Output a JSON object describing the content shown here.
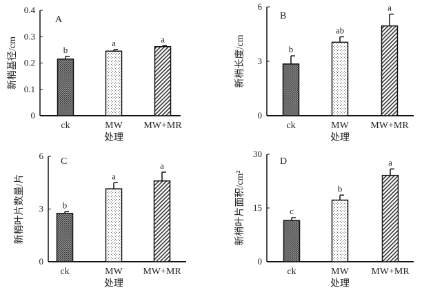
{
  "chart_data": [
    {
      "type": "bar",
      "panel": "A",
      "ylabel": "新梢基径/cm",
      "xlabel": "处理",
      "categories": [
        "ck",
        "MW",
        "MW+MR"
      ],
      "values": [
        0.215,
        0.245,
        0.262
      ],
      "errors": [
        0.01,
        0.006,
        0.004
      ],
      "letters": [
        "b",
        "a",
        "a"
      ],
      "ylim": [
        0,
        0.4
      ],
      "yticks": [
        "0",
        "0.1",
        "0.2",
        "0.3",
        "0.4"
      ],
      "ytick_values": [
        0,
        0.1,
        0.2,
        0.3,
        0.4
      ]
    },
    {
      "type": "bar",
      "panel": "B",
      "ylabel": "新梢长度/cm",
      "xlabel": "处理",
      "categories": [
        "ck",
        "MW",
        "MW+MR"
      ],
      "values": [
        2.85,
        4.05,
        4.95
      ],
      "errors": [
        0.45,
        0.3,
        0.65
      ],
      "letters": [
        "b",
        "ab",
        "a"
      ],
      "ylim": [
        0,
        6
      ],
      "yticks": [
        "0",
        "3",
        "6"
      ],
      "ytick_values": [
        0,
        3,
        6
      ]
    },
    {
      "type": "bar",
      "panel": "C",
      "ylabel": "新梢叶片数量/片",
      "xlabel": "处理",
      "categories": [
        "ck",
        "MW",
        "MW+MR"
      ],
      "values": [
        2.75,
        4.15,
        4.6
      ],
      "errors": [
        0.1,
        0.35,
        0.5
      ],
      "letters": [
        "b",
        "a",
        "a"
      ],
      "ylim": [
        0,
        6
      ],
      "yticks": [
        "0",
        "3",
        "6"
      ],
      "ytick_values": [
        0,
        3,
        6
      ]
    },
    {
      "type": "bar",
      "panel": "D",
      "ylabel": "新梢叶片面积/cm²",
      "xlabel": "处理",
      "categories": [
        "ck",
        "MW",
        "MW+MR"
      ],
      "values": [
        11.5,
        17.2,
        24.1
      ],
      "errors": [
        0.8,
        1.4,
        1.8
      ],
      "letters": [
        "c",
        "b",
        "a"
      ],
      "ylim": [
        0,
        30
      ],
      "yticks": [
        "0",
        "15",
        "30"
      ],
      "ytick_values": [
        0,
        15,
        30
      ]
    }
  ]
}
